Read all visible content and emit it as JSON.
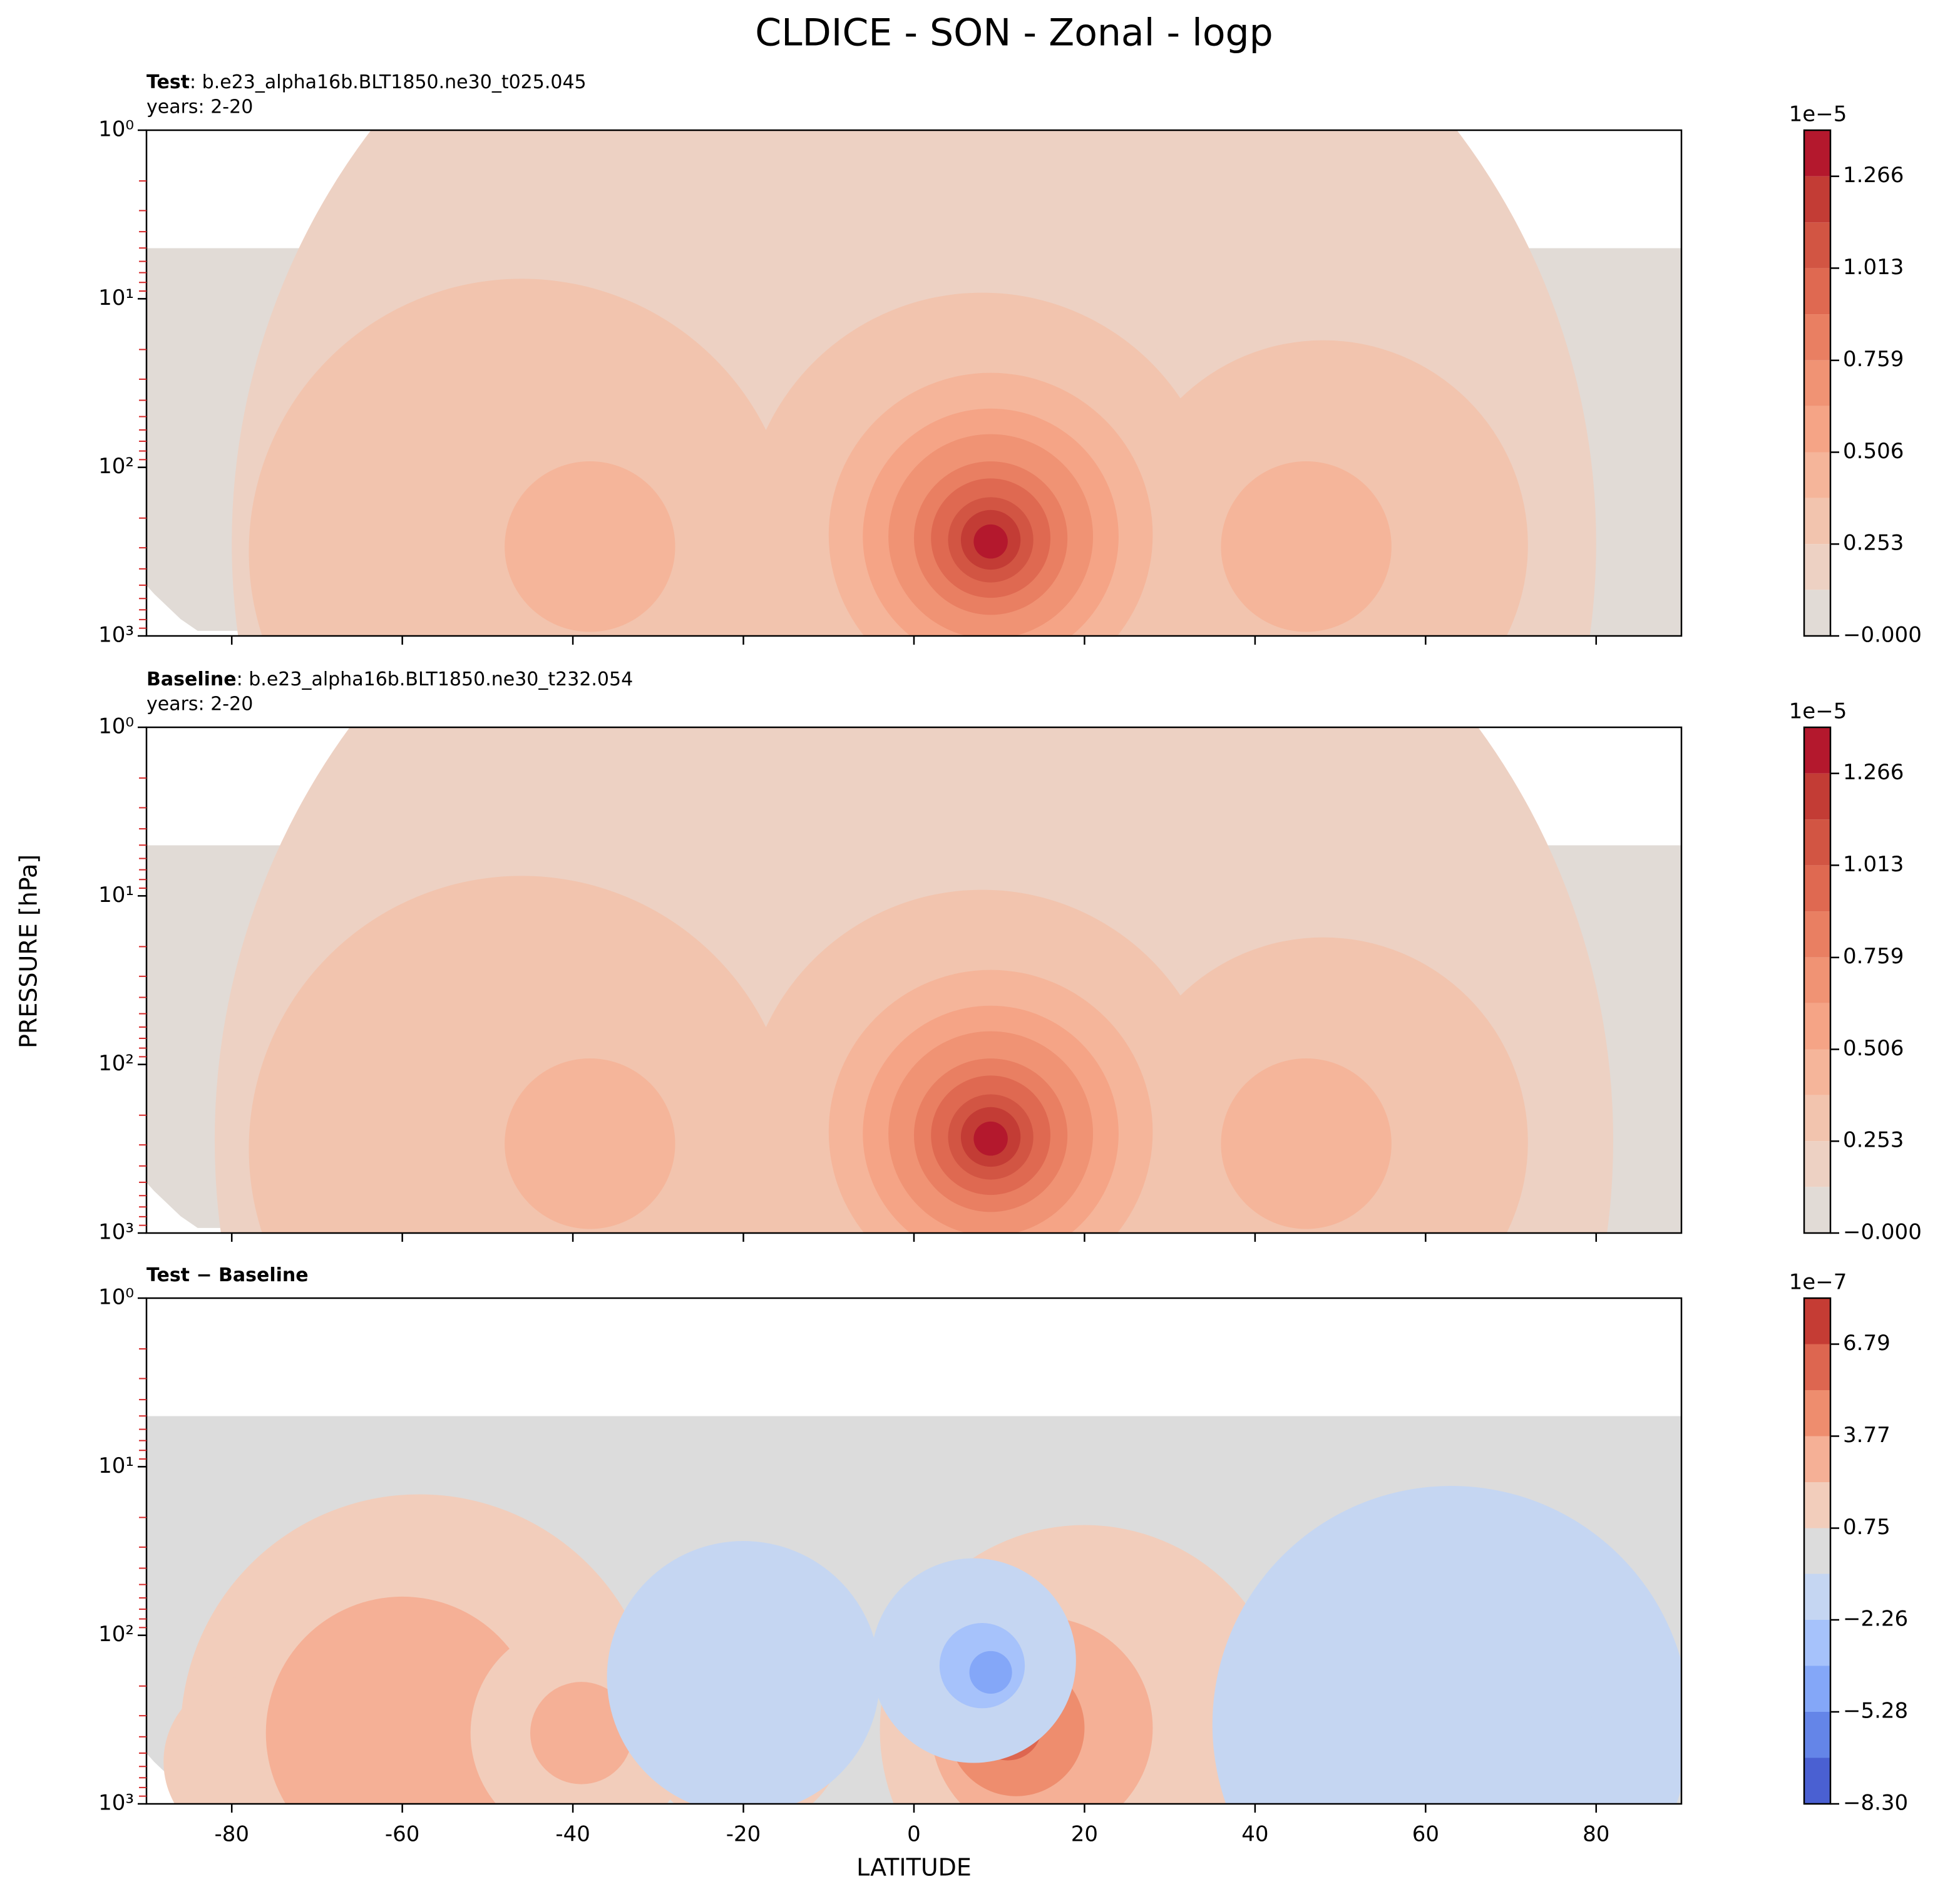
{
  "title": "CLDICE - SON - Zonal - logp",
  "x_label": "LATITUDE",
  "y_label": "PRESSURE [hPa]",
  "chart_data": [
    {
      "type": "contour",
      "label": "Test",
      "case": ": b.e23_alpha16b.BLT1850.ne30_t025.045",
      "years": "years: 2-20",
      "xlim": [
        -90,
        90
      ],
      "xticks": [
        -80,
        -60,
        -40,
        -20,
        0,
        20,
        40,
        60,
        80
      ],
      "ylim": [
        1000,
        1
      ],
      "ylog": true,
      "yticks": [
        {
          "value": 1,
          "label": "10⁰"
        },
        {
          "value": 10,
          "label": "10¹"
        },
        {
          "value": 100,
          "label": "10²"
        },
        {
          "value": 1000,
          "label": "10³"
        }
      ],
      "colorbar_offset": "1e−5",
      "levels": [
        0,
        0.127,
        0.253,
        0.38,
        0.506,
        0.633,
        0.759,
        0.886,
        1.013,
        1.139,
        1.266,
        1.393
      ],
      "colors": [
        "#e1dbd6",
        "#edd1c3",
        "#f2c4ae",
        "#f5b59a",
        "#f5a486",
        "#f09374",
        "#e97f62",
        "#df6951",
        "#d25543",
        "#c33c35",
        "#b4182d"
      ],
      "cticks": [
        {
          "value": 0,
          "label": "−0.000"
        },
        0.253,
        0.506,
        0.759,
        1.013,
        1.266
      ]
    },
    {
      "type": "contour",
      "label": "Baseline",
      "case": ": b.e23_alpha16b.BLT1850.ne30_t232.054",
      "years": "years: 2-20",
      "xlim": [
        -90,
        90
      ],
      "xticks": [
        -80,
        -60,
        -40,
        -20,
        0,
        20,
        40,
        60,
        80
      ],
      "ylim": [
        1000,
        1
      ],
      "ylog": true,
      "yticks": [
        {
          "value": 1,
          "label": "10⁰"
        },
        {
          "value": 10,
          "label": "10¹"
        },
        {
          "value": 100,
          "label": "10²"
        },
        {
          "value": 1000,
          "label": "10³"
        }
      ],
      "colorbar_offset": "1e−5",
      "levels": [
        0,
        0.127,
        0.253,
        0.38,
        0.506,
        0.633,
        0.759,
        0.886,
        1.013,
        1.139,
        1.266,
        1.393
      ],
      "colors": [
        "#e1dbd6",
        "#edd1c3",
        "#f2c4ae",
        "#f5b59a",
        "#f5a486",
        "#f09374",
        "#e97f62",
        "#df6951",
        "#d25543",
        "#c33c35",
        "#b4182d"
      ],
      "cticks": [
        {
          "value": 0,
          "label": "−0.000"
        },
        0.253,
        0.506,
        0.759,
        1.013,
        1.266
      ]
    },
    {
      "type": "contour",
      "label": "Test − Baseline",
      "xlim": [
        -90,
        90
      ],
      "xticks": [
        -80,
        -60,
        -40,
        -20,
        0,
        20,
        40,
        60,
        80
      ],
      "ylim": [
        1000,
        1
      ],
      "ylog": true,
      "yticks": [
        {
          "value": 1,
          "label": "10⁰"
        },
        {
          "value": 10,
          "label": "10¹"
        },
        {
          "value": 100,
          "label": "10²"
        },
        {
          "value": 1000,
          "label": "10³"
        }
      ],
      "colorbar_offset": "1e−7",
      "levels": [
        -8.3,
        -6.79,
        -5.28,
        -3.77,
        -2.26,
        -0.75,
        0.75,
        2.26,
        3.77,
        5.28,
        6.79,
        8.3
      ],
      "colors": [
        "#4a60d2",
        "#6485e8",
        "#84a7f8",
        "#a6c2fb",
        "#c5d6f2",
        "#dcdcdc",
        "#f2cdbb",
        "#f5b096",
        "#ee8d6e",
        "#dd6650",
        "#c53c34"
      ],
      "cticks": [
        {
          "value": -8.3,
          "label": "−8.30"
        },
        {
          "value": -5.28,
          "label": "−5.28"
        },
        {
          "value": -2.26,
          "label": "−2.26"
        },
        0.75,
        3.77,
        6.79
      ]
    }
  ]
}
